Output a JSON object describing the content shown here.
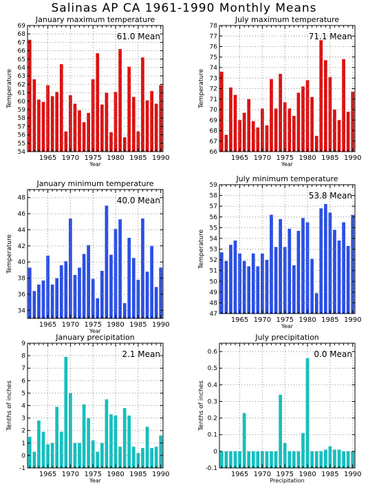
{
  "title": "Salinas AP CA  1961-1990 Monthly Means",
  "colors": {
    "red": "#dd1111",
    "blue": "#2a4fe6",
    "teal": "#14c0bf",
    "grid": "#8a8a8a"
  },
  "chart_data": [
    {
      "type": "bar",
      "title": "January maximum temperature",
      "mean_label": "61.0  Mean",
      "ylabel": "Temperature",
      "xlabel": "Year",
      "color": "red",
      "ylim": [
        54,
        69
      ],
      "yticks": [
        54,
        55,
        56,
        57,
        58,
        59,
        60,
        61,
        62,
        63,
        64,
        65,
        66,
        67,
        68,
        69
      ],
      "xticks": [
        1965,
        1970,
        1975,
        1980,
        1985,
        1990
      ],
      "x": [
        1961,
        1962,
        1963,
        1964,
        1965,
        1966,
        1967,
        1968,
        1969,
        1970,
        1971,
        1972,
        1973,
        1974,
        1975,
        1976,
        1977,
        1978,
        1979,
        1980,
        1981,
        1982,
        1983,
        1984,
        1985,
        1986,
        1987,
        1988,
        1989,
        1990
      ],
      "values": [
        67.3,
        62.6,
        60.2,
        59.9,
        61.9,
        60.6,
        61.1,
        64.4,
        56.4,
        60.7,
        59.7,
        58.9,
        57.5,
        58.6,
        62.6,
        65.7,
        59.6,
        61.0,
        56.3,
        61.1,
        66.2,
        55.7,
        64.1,
        60.5,
        56.4,
        65.2,
        60.1,
        61.2,
        59.7,
        61.9
      ]
    },
    {
      "type": "bar",
      "title": "July maximum temperature",
      "mean_label": "71.1  Mean",
      "ylabel": "Temperature",
      "xlabel": "Year",
      "color": "red",
      "ylim": [
        66,
        78
      ],
      "yticks": [
        66,
        67,
        68,
        69,
        70,
        71,
        72,
        73,
        74,
        75,
        76,
        77,
        78
      ],
      "xticks": [
        1965,
        1970,
        1975,
        1980,
        1985,
        1990
      ],
      "x": [
        1961,
        1962,
        1963,
        1964,
        1965,
        1966,
        1967,
        1968,
        1969,
        1970,
        1971,
        1972,
        1973,
        1974,
        1975,
        1976,
        1977,
        1978,
        1979,
        1980,
        1981,
        1982,
        1983,
        1984,
        1985,
        1986,
        1987,
        1988,
        1989,
        1990
      ],
      "values": [
        73.6,
        67.6,
        72.1,
        71.4,
        69.0,
        69.7,
        71.0,
        68.9,
        68.3,
        70.1,
        68.5,
        72.9,
        70.1,
        73.4,
        70.7,
        70.1,
        69.4,
        71.6,
        72.2,
        72.8,
        71.2,
        67.5,
        76.6,
        74.7,
        73.1,
        70.0,
        69.0,
        74.8,
        69.8,
        71.7
      ]
    },
    {
      "type": "bar",
      "title": "January minimum temperature",
      "mean_label": "40.0  Mean",
      "ylabel": "Temperature",
      "xlabel": "Year",
      "color": "blue",
      "ylim": [
        33,
        49
      ],
      "yticks": [
        34,
        36,
        38,
        40,
        42,
        44,
        46,
        48
      ],
      "xticks": [
        1965,
        1970,
        1975,
        1980,
        1985,
        1990
      ],
      "x": [
        1961,
        1962,
        1963,
        1964,
        1965,
        1966,
        1967,
        1968,
        1969,
        1970,
        1971,
        1972,
        1973,
        1974,
        1975,
        1976,
        1977,
        1978,
        1979,
        1980,
        1981,
        1982,
        1983,
        1984,
        1985,
        1986,
        1987,
        1988,
        1989,
        1990
      ],
      "values": [
        39.3,
        36.4,
        37.2,
        37.7,
        40.8,
        37.2,
        38.0,
        39.6,
        40.1,
        45.4,
        38.4,
        39.3,
        41.0,
        42.1,
        37.9,
        35.5,
        38.9,
        47.0,
        40.9,
        44.1,
        45.3,
        34.9,
        43.0,
        40.5,
        37.8,
        45.4,
        38.8,
        42.0,
        36.9,
        39.3
      ]
    },
    {
      "type": "bar",
      "title": "July minimum temperature",
      "mean_label": "53.8  Mean",
      "ylabel": "Temperature",
      "xlabel": "Year",
      "color": "blue",
      "ylim": [
        47,
        59
      ],
      "yticks": [
        47,
        48,
        49,
        50,
        51,
        52,
        53,
        54,
        55,
        56,
        57,
        58,
        59
      ],
      "xticks": [
        1965,
        1970,
        1975,
        1980,
        1985,
        1990
      ],
      "x": [
        1961,
        1962,
        1963,
        1964,
        1965,
        1966,
        1967,
        1968,
        1969,
        1970,
        1971,
        1972,
        1973,
        1974,
        1975,
        1976,
        1977,
        1978,
        1979,
        1980,
        1981,
        1982,
        1983,
        1984,
        1985,
        1986,
        1987,
        1988,
        1989,
        1990
      ],
      "values": [
        52.7,
        51.9,
        53.4,
        53.8,
        52.6,
        51.9,
        51.4,
        52.6,
        51.4,
        52.6,
        52.0,
        56.2,
        53.2,
        55.8,
        53.2,
        54.9,
        51.5,
        54.7,
        55.9,
        55.5,
        52.1,
        48.9,
        56.8,
        57.2,
        56.4,
        54.8,
        53.8,
        55.5,
        53.3,
        56.2
      ]
    },
    {
      "type": "bar",
      "title": "January precipitation",
      "mean_label": "2.1  Mean",
      "ylabel": "Tenths of inches",
      "xlabel": "Year",
      "color": "teal",
      "ylim": [
        -1,
        9
      ],
      "yticks": [
        -1,
        0,
        1,
        2,
        3,
        4,
        5,
        6,
        7,
        8,
        9
      ],
      "xticks": [
        1965,
        1970,
        1975,
        1980,
        1985,
        1990
      ],
      "x": [
        1961,
        1962,
        1963,
        1964,
        1965,
        1966,
        1967,
        1968,
        1969,
        1970,
        1971,
        1972,
        1973,
        1974,
        1975,
        1976,
        1977,
        1978,
        1979,
        1980,
        1981,
        1982,
        1983,
        1984,
        1985,
        1986,
        1987,
        1988,
        1989,
        1990
      ],
      "values": [
        1.5,
        0.3,
        2.8,
        1.9,
        0.9,
        1.0,
        3.9,
        1.9,
        7.9,
        5.0,
        1.0,
        1.0,
        4.1,
        3.0,
        1.2,
        0.3,
        1.0,
        4.5,
        3.3,
        3.2,
        0.7,
        3.8,
        3.2,
        0.7,
        0.2,
        0.6,
        2.3,
        0.6,
        0.7,
        1.6
      ]
    },
    {
      "type": "bar",
      "title": "July precipitation",
      "mean_label": "0.0  Mean",
      "ylabel": "Tenths of inches",
      "xlabel": "Precipitation",
      "color": "teal",
      "ylim": [
        -0.1,
        0.65
      ],
      "yticks": [
        -0.1,
        0,
        0.1,
        0.2,
        0.3,
        0.4,
        0.5,
        0.6
      ],
      "xticks": [
        1965,
        1970,
        1975,
        1980,
        1985,
        1990
      ],
      "x": [
        1961,
        1962,
        1963,
        1964,
        1965,
        1966,
        1967,
        1968,
        1969,
        1970,
        1971,
        1972,
        1973,
        1974,
        1975,
        1976,
        1977,
        1978,
        1979,
        1980,
        1981,
        1982,
        1983,
        1984,
        1985,
        1986,
        1987,
        1988,
        1989,
        1990
      ],
      "values": [
        0,
        0,
        0,
        0,
        0,
        0.23,
        0,
        0,
        0,
        0,
        0,
        0,
        0,
        0.34,
        0.05,
        0,
        0,
        0,
        0.11,
        0.56,
        0,
        0,
        0,
        0.01,
        0.03,
        0.01,
        0.01,
        0,
        0,
        0
      ]
    }
  ]
}
